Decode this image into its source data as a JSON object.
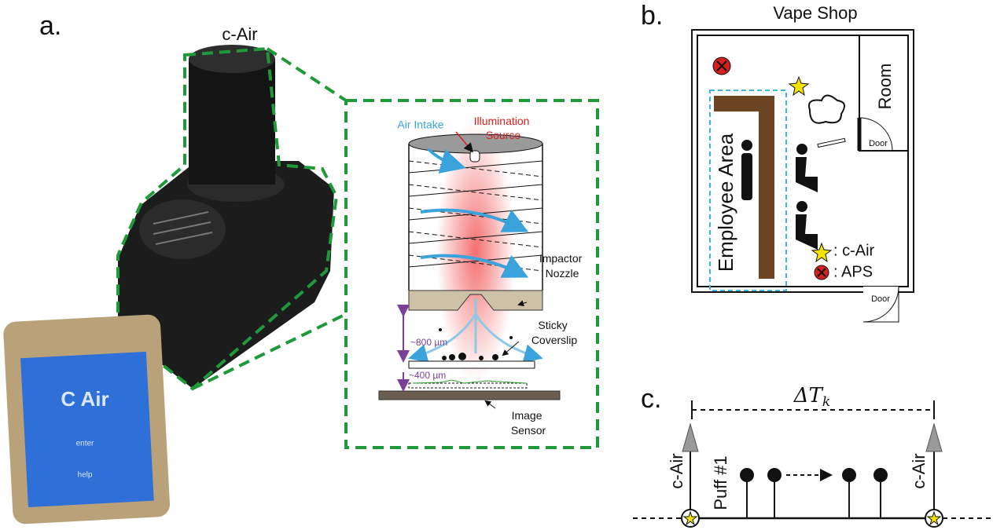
{
  "panel_a": {
    "label": "a.",
    "device_title": "c-Air",
    "phone": {
      "title": "C Air",
      "button_enter": "enter",
      "button_help": "help"
    },
    "inset": {
      "air_intake": "Air Intake",
      "illumination_source": [
        "Illumination",
        "Source"
      ],
      "impactor_nozzle": [
        "Impactor",
        "Nozzle"
      ],
      "sticky_coverslip": [
        "Sticky",
        "Coverslip"
      ],
      "gap_nozzle": "~800 µm",
      "gap_sensor": "~400 µm",
      "image_sensor": [
        "Image",
        "Sensor"
      ]
    }
  },
  "panel_b": {
    "label": "b.",
    "title": "Vape Shop",
    "room": "Room",
    "door_room": "Door",
    "door_entrance": "Door",
    "employee_area": "Employee Area",
    "legend": [
      ": c-Air",
      ": APS"
    ]
  },
  "panel_c": {
    "label": "c.",
    "interval": {
      "symbol": "ΔT",
      "subscript": "k"
    },
    "left_marker": "c-Air",
    "right_marker": "c-Air",
    "first_puff": "Puff #1"
  }
}
